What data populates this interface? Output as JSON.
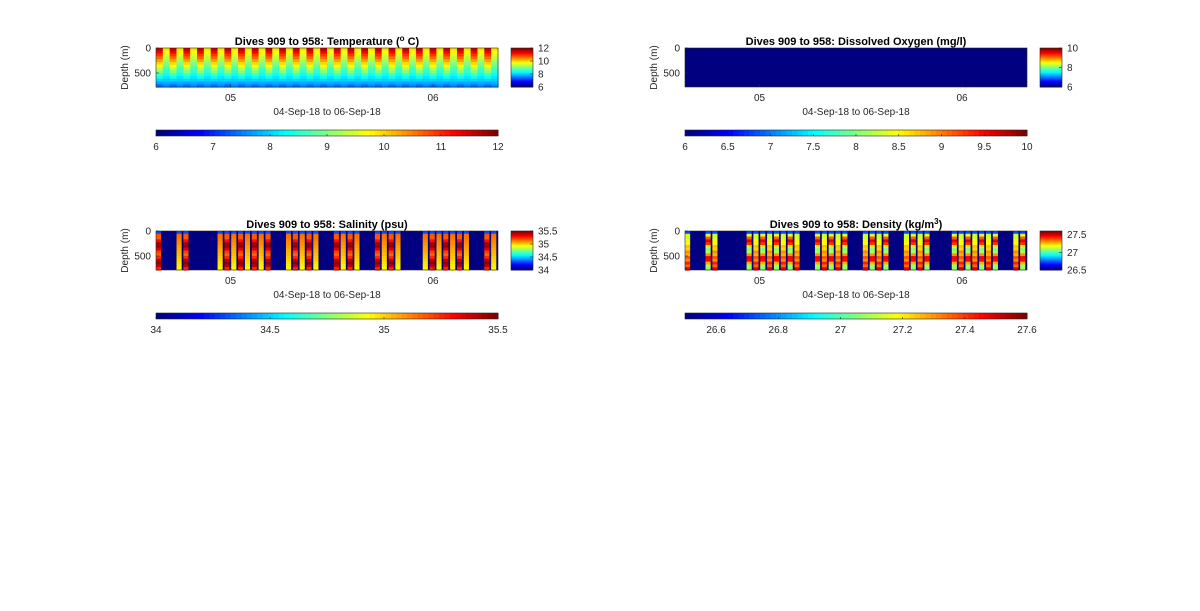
{
  "chart_data": [
    {
      "type": "heatmap",
      "variable": "temperature",
      "title": "Dives 909 to 958: Temperature (",
      "title_sup": "o",
      "title_end": " C)",
      "ylabel": "Depth (m)",
      "xlabel": "04-Sep-18 to 06-Sep-18",
      "x_ticks": [
        "05",
        "06"
      ],
      "y_ticks": [
        "0",
        "500"
      ],
      "clim": [
        6,
        12
      ],
      "cbar_ticks": [
        "12",
        "10",
        "8",
        "6"
      ],
      "hbar_ticks": [
        "6",
        "7",
        "8",
        "9",
        "10",
        "11",
        "12"
      ],
      "profile": {
        "surface": 11.6,
        "deep": 7.4,
        "alternating_low": 9.0
      },
      "dives": 50
    },
    {
      "type": "heatmap",
      "variable": "dissolved_oxygen",
      "title": "Dives 909 to 958: Dissolved Oxygen (mg/l)",
      "ylabel": "Depth (m)",
      "xlabel": "04-Sep-18 to 06-Sep-18",
      "x_ticks": [
        "05",
        "06"
      ],
      "y_ticks": [
        "0",
        "500"
      ],
      "clim": [
        6,
        10
      ],
      "cbar_ticks": [
        "10",
        "8",
        "6"
      ],
      "hbar_ticks": [
        "6",
        "6.5",
        "7",
        "7.5",
        "8",
        "8.5",
        "9",
        "9.5",
        "10"
      ],
      "uniform_value": 6.0
    },
    {
      "type": "heatmap",
      "variable": "salinity",
      "title": "Dives 909 to 958: Salinity (psu)",
      "ylabel": "Depth (m)",
      "xlabel": "04-Sep-18 to 06-Sep-18",
      "x_ticks": [
        "05",
        "06"
      ],
      "y_ticks": [
        "0",
        "500"
      ],
      "clim": [
        34,
        35.5
      ],
      "cbar_ticks": [
        "35.5",
        "35",
        "34.5",
        "34"
      ],
      "hbar_ticks": [
        "34",
        "34.5",
        "35",
        "35.5"
      ],
      "background_value": 34.0
    },
    {
      "type": "heatmap",
      "variable": "density",
      "title": "Dives 909 to 958: Density (kg/m",
      "title_sup": "3",
      "title_end": ")",
      "ylabel": "Depth (m)",
      "xlabel": "04-Sep-18 to 06-Sep-18",
      "x_ticks": [
        "05",
        "06"
      ],
      "y_ticks": [
        "0",
        "500"
      ],
      "clim": [
        26.5,
        27.6
      ],
      "cbar_ticks": [
        "27.5",
        "27",
        "26.5"
      ],
      "hbar_ticks": [
        "26.6",
        "26.8",
        "27",
        "27.2",
        "27.4",
        "27.6"
      ],
      "background_value": 26.5
    }
  ]
}
